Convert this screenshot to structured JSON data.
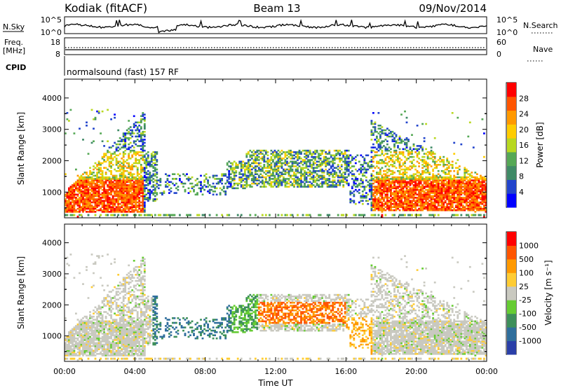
{
  "header": {
    "station": "Kodiak (fitACF)",
    "beam": "Beam 13",
    "date": "09/Nov/2014"
  },
  "status_panels": {
    "nsky_label": "N.Sky",
    "nsky_ticks": [
      "10^5",
      "10^0"
    ],
    "nsearch_label": "N.Search",
    "nsearch_ticks": [
      "10^5",
      "10^0"
    ],
    "freq_label": "Freq.",
    "freq_unit": "[MHz]",
    "freq_ticks": [
      "18",
      "8"
    ],
    "nave_label": "Nave",
    "nave_ticks": [
      "60",
      "0"
    ],
    "cpid_label": "CPID",
    "cpid_value": "normalsound (fast) 157 RF"
  },
  "colors": {
    "power_scale": [
      "#0000ff",
      "#2244cc",
      "#3f8a66",
      "#55a855",
      "#b8d820",
      "#ffcc00",
      "#ff9900",
      "#ff5500",
      "#ff0000"
    ],
    "velocity_scale": [
      "#2a3fa8",
      "#2f6e9c",
      "#3d8f5a",
      "#66cc33",
      "#c9c9c0",
      "#ffcc33",
      "#ff9900",
      "#ff5500",
      "#ff0000"
    ]
  },
  "chart_data": [
    {
      "type": "heatmap",
      "name": "power",
      "ylabel": "Slant Range [km]",
      "xlim": [
        0,
        24
      ],
      "ylim": [
        180,
        4600
      ],
      "y_ticks": [
        "1000",
        "2000",
        "3000",
        "4000"
      ],
      "colorbar": {
        "label": "Power [dB]",
        "ticks": [
          "4",
          "8",
          "12",
          "16",
          "20",
          "24",
          "28"
        ],
        "range": [
          0,
          32
        ]
      }
    },
    {
      "type": "heatmap",
      "name": "velocity",
      "ylabel": "Slant Range [km]",
      "xlabel": "Time UT",
      "xlim": [
        0,
        24
      ],
      "ylim": [
        180,
        4600
      ],
      "y_ticks": [
        "1000",
        "2000",
        "3000",
        "4000"
      ],
      "x_ticks": [
        "00:00",
        "04:00",
        "08:00",
        "12:00",
        "16:00",
        "20:00",
        "00:00"
      ],
      "colorbar": {
        "label": "Velocity [m s⁻¹]",
        "ticks": [
          "1000",
          "500",
          "100",
          "25",
          "-25",
          "-100",
          "-500",
          "-1000"
        ]
      }
    }
  ]
}
